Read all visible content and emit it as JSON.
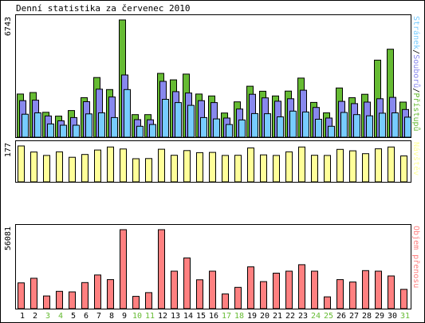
{
  "title": "Denní statistika za červenec 2010",
  "colors": {
    "hits": "#66bb33",
    "files": "#8888ee",
    "pages": "#77ccff",
    "visits": "#ffff99",
    "traffic": "#ff8080",
    "weekend_day": "#66bb33",
    "axis_text": "#000000",
    "frame": "#000000",
    "grid": "#888888"
  },
  "day_labels": [
    "1",
    "2",
    "3",
    "4",
    "5",
    "6",
    "7",
    "8",
    "9",
    "10",
    "11",
    "12",
    "13",
    "14",
    "15",
    "16",
    "17",
    "18",
    "19",
    "20",
    "21",
    "22",
    "23",
    "24",
    "25",
    "26",
    "27",
    "28",
    "29",
    "30",
    "31"
  ],
  "weekend_days": [
    "3",
    "4",
    "10",
    "11",
    "17",
    "18",
    "24",
    "25",
    "31"
  ],
  "chart_data": [
    {
      "type": "bar",
      "title": "",
      "ylabel_parts": [
        {
          "text": "Stránek",
          "color_key": "pages"
        },
        {
          "text": "/",
          "color_key": "axis_text"
        },
        {
          "text": "Souborů",
          "color_key": "files"
        },
        {
          "text": "/",
          "color_key": "axis_text"
        },
        {
          "text": "Přístupů",
          "color_key": "hits"
        }
      ],
      "y_max_label": "6743",
      "ylim": [
        0,
        6743
      ],
      "categories": [
        "1",
        "2",
        "3",
        "4",
        "5",
        "6",
        "7",
        "8",
        "9",
        "10",
        "11",
        "12",
        "13",
        "14",
        "15",
        "16",
        "17",
        "18",
        "19",
        "20",
        "21",
        "22",
        "23",
        "24",
        "25",
        "26",
        "27",
        "28",
        "29",
        "30",
        "31"
      ],
      "series": [
        {
          "name": "Přístupů",
          "color_key": "hits",
          "values": [
            2480,
            2570,
            1430,
            1210,
            1530,
            2270,
            3430,
            2740,
            6743,
            1300,
            1300,
            3670,
            3300,
            3630,
            2480,
            2370,
            1390,
            2030,
            2930,
            2640,
            2370,
            2650,
            3400,
            2000,
            1400,
            2830,
            2270,
            2470,
            4430,
            5060,
            2020
          ]
        },
        {
          "name": "Souborů",
          "color_key": "files",
          "values": [
            2100,
            2130,
            1220,
            940,
            1130,
            2040,
            2760,
            2310,
            3580,
            1010,
            1000,
            3210,
            2620,
            2540,
            2100,
            1990,
            1100,
            1620,
            2470,
            2260,
            2070,
            2210,
            2700,
            1710,
            1100,
            2060,
            1930,
            2020,
            2210,
            2290,
            1590
          ]
        },
        {
          "name": "Stránek",
          "color_key": "pages",
          "values": [
            1320,
            1400,
            760,
            690,
            690,
            1340,
            1400,
            1130,
            2740,
            630,
            730,
            2180,
            1990,
            1830,
            1130,
            1050,
            730,
            990,
            1360,
            1350,
            1170,
            1500,
            1450,
            1030,
            630,
            1420,
            1300,
            1230,
            1380,
            1400,
            1150
          ]
        }
      ]
    },
    {
      "type": "bar",
      "title": "",
      "ylabel": "Návštěv",
      "ylabel_color_key": "visits",
      "y_max_label": "177",
      "ylim": [
        0,
        177
      ],
      "categories": [
        "1",
        "2",
        "3",
        "4",
        "5",
        "6",
        "7",
        "8",
        "9",
        "10",
        "11",
        "12",
        "13",
        "14",
        "15",
        "16",
        "17",
        "18",
        "19",
        "20",
        "21",
        "22",
        "23",
        "24",
        "25",
        "26",
        "27",
        "28",
        "29",
        "30",
        "31"
      ],
      "series": [
        {
          "name": "Návštěv",
          "color_key": "visits",
          "values": [
            177,
            147,
            130,
            148,
            121,
            135,
            157,
            172,
            162,
            114,
            115,
            161,
            131,
            154,
            144,
            145,
            130,
            131,
            167,
            133,
            130,
            148,
            172,
            131,
            130,
            160,
            153,
            139,
            163,
            172,
            128
          ]
        }
      ]
    },
    {
      "type": "bar",
      "title": "",
      "ylabel": "Objem přenosu",
      "ylabel_color_key": "traffic",
      "y_max_label": "56081",
      "ylim": [
        0,
        56081
      ],
      "categories": [
        "1",
        "2",
        "3",
        "4",
        "5",
        "6",
        "7",
        "8",
        "9",
        "10",
        "11",
        "12",
        "13",
        "14",
        "15",
        "16",
        "17",
        "18",
        "19",
        "20",
        "21",
        "22",
        "23",
        "24",
        "25",
        "26",
        "27",
        "28",
        "29",
        "30",
        "31"
      ],
      "series": [
        {
          "name": "Objem přenosu",
          "color_key": "traffic",
          "values": [
            18300,
            21600,
            9030,
            12300,
            11900,
            18500,
            23900,
            20600,
            56081,
            8700,
            11400,
            56081,
            26600,
            36000,
            20500,
            26600,
            10400,
            15100,
            29700,
            19200,
            25200,
            26600,
            31200,
            26600,
            8400,
            20600,
            18900,
            27000,
            26600,
            23200,
            13700
          ]
        }
      ]
    }
  ]
}
